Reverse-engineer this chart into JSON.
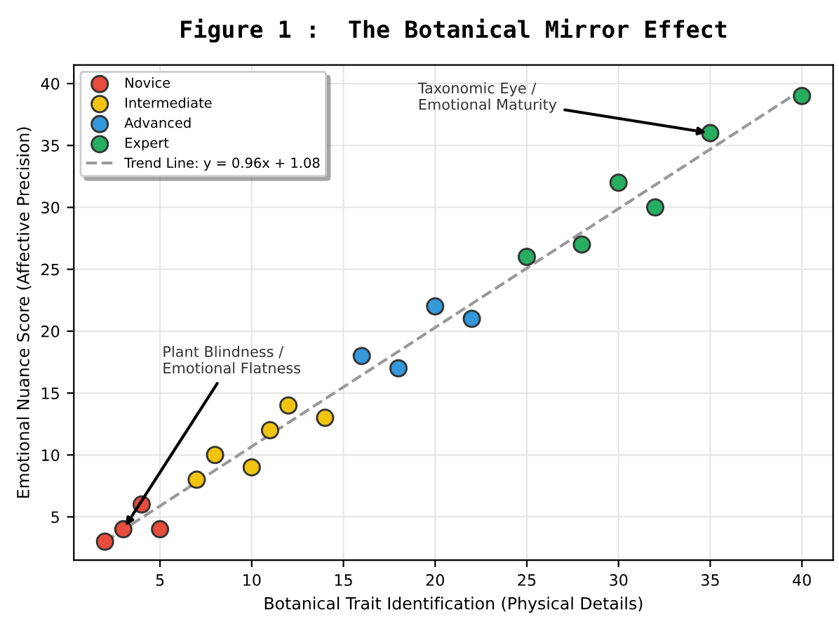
{
  "chart_data": {
    "type": "scatter",
    "title": "Figure 1 :  The Botanical Mirror Effect",
    "xlabel": "Botanical Trait Identification (Physical Details)",
    "ylabel": "Emotional Nuance Score (Affective Precision)",
    "series": [
      {
        "name": "Novice",
        "color": "#e74c3c",
        "x": [
          2,
          3,
          4,
          5
        ],
        "values": [
          3,
          4,
          6,
          4
        ]
      },
      {
        "name": "Intermediate",
        "color": "#f1c40f",
        "x": [
          7,
          8,
          10,
          11,
          12,
          14
        ],
        "values": [
          8,
          10,
          9,
          12,
          14,
          13
        ]
      },
      {
        "name": "Advanced",
        "color": "#3498db",
        "x": [
          16,
          18,
          20,
          22
        ],
        "values": [
          18,
          17,
          22,
          21
        ]
      },
      {
        "name": "Expert",
        "color": "#27ae60",
        "x": [
          25,
          28,
          30,
          32,
          35,
          40
        ],
        "values": [
          26,
          27,
          32,
          30,
          36,
          39
        ]
      },
      {
        "name": "Trend Line: y = 0.96x + 1.08",
        "type": "line",
        "color": "#999999",
        "line_style": "dashed",
        "marker": "none",
        "x": [
          2,
          40
        ],
        "values": [
          3.0,
          39.5
        ]
      }
    ],
    "annotations": [
      {
        "text": "Plant Blindness /\nEmotional Flatness",
        "x": 3,
        "y": 4
      },
      {
        "text": "Taxonomic Eye /\nEmotional Maturity",
        "x": 35,
        "y": 36
      }
    ],
    "xlim": [
      0.3,
      41.7
    ],
    "ylim": [
      1.5,
      41.5
    ],
    "xticks": [
      5,
      10,
      15,
      20,
      25,
      30,
      35,
      40
    ],
    "yticks": [
      5,
      10,
      15,
      20,
      25,
      30,
      35,
      40
    ],
    "grid": true,
    "legend": "top left",
    "marker": "circle"
  }
}
